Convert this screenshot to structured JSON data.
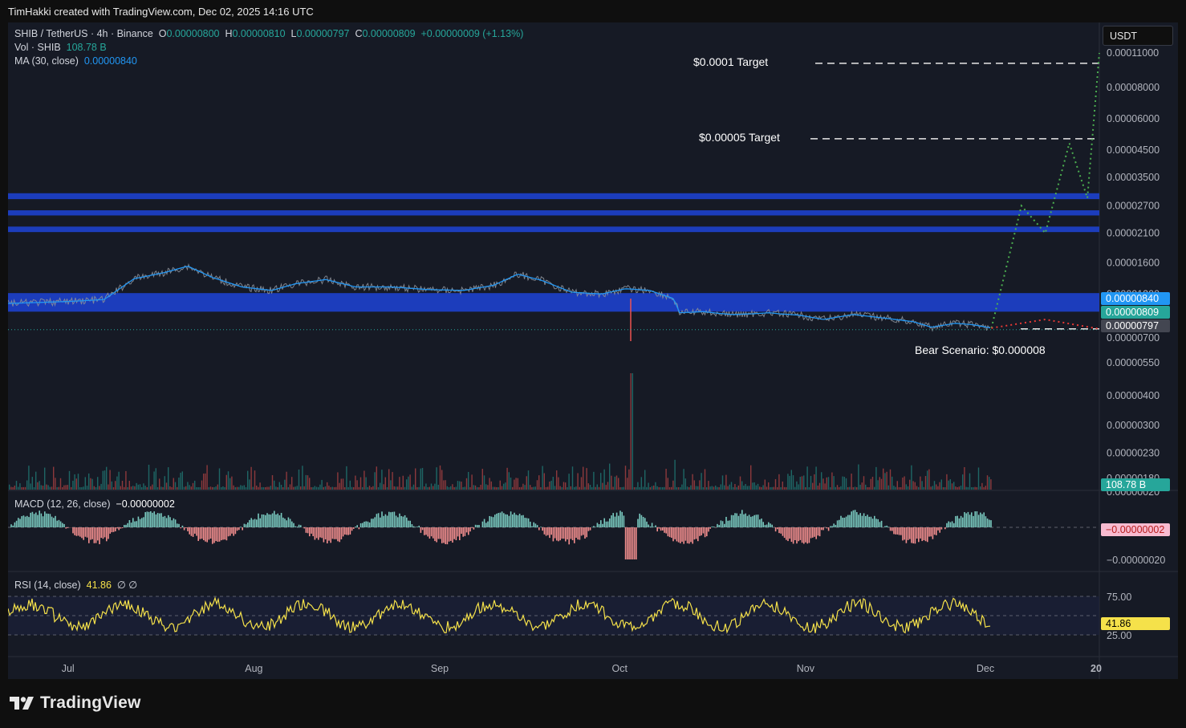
{
  "header": {
    "credit": "TimHakki created with TradingView.com, Dec 02, 2025 14:16 UTC"
  },
  "legend": {
    "symbol": "SHIB / TetherUS · 4h · Binance",
    "o_label": "O",
    "o_value": "0.00000800",
    "h_label": "H",
    "h_value": "0.00000810",
    "l_label": "L",
    "l_value": "0.00000797",
    "c_label": "C",
    "c_value": "0.00000809",
    "change": "+0.00000009 (+1.13%)",
    "vol_label": "Vol · SHIB",
    "vol_value": "108.78 B",
    "ma_label": "MA (30, close)",
    "ma_value": "0.00000840",
    "macd_label": "MACD (12, 26, close)",
    "macd_value": "−0.00000002",
    "rsi_label": "RSI (14, close)",
    "rsi_value": "41.86",
    "rsi_extra": "∅ ∅"
  },
  "currency": "USDT",
  "footer": {
    "brand": "TradingView"
  },
  "colors": {
    "background": "#161a25",
    "up": "#26a69a",
    "down": "#ef5350",
    "ma": "#2196f3",
    "zone": "#1c3fc4",
    "bull_path": "#4caf50",
    "bear_path": "#e53935",
    "rsi": "#f5e14a"
  },
  "chart_data": {
    "type": "line",
    "symbol": "SHIB / TetherUS",
    "timeframe": "4h",
    "x_ticks": [
      "Jul",
      "Aug",
      "Sep",
      "Oct",
      "Nov",
      "Dec",
      "20"
    ],
    "y_scale": "log",
    "price_axis_ticks": [
      "0.00011000",
      "0.00008000",
      "0.00006000",
      "0.00004500",
      "0.00003500",
      "0.00002700",
      "0.00002100",
      "0.00001600",
      "0.00001200",
      "0.00000700",
      "0.00000550",
      "0.00000400",
      "0.00000300",
      "0.00000230",
      "0.00000180",
      "0.00000020"
    ],
    "price_labels": [
      {
        "text": "0.00000840",
        "kind": "ma"
      },
      {
        "text": "0.00000809",
        "kind": "last"
      },
      {
        "text": "0.00000797",
        "kind": "low"
      }
    ],
    "volume_label": "108.78 B",
    "macd_axis_ticks": [
      "−0.00000020"
    ],
    "macd_label": "−0.00000002",
    "rsi_axis_ticks": [
      "75.00",
      "25.00"
    ],
    "rsi_label": "41.86",
    "annotations": [
      {
        "text": "$0.0001 Target",
        "price": 0.0001
      },
      {
        "text": "$0.00005 Target",
        "price": 5e-05
      },
      {
        "text": "Bear Scenario: $0.000008",
        "price": 8e-06
      }
    ],
    "resistance_zones": [
      {
        "low": 2.87e-05,
        "high": 3.03e-05
      },
      {
        "low": 2.47e-05,
        "high": 2.59e-05
      },
      {
        "low": 2.12e-05,
        "high": 2.23e-05
      },
      {
        "low": 1.02e-05,
        "high": 1.21e-05
      }
    ],
    "bull_scenario_path": [
      {
        "date": "2025-12-02",
        "price": 8.1e-06
      },
      {
        "date": "2025-12-07",
        "price": 2.7e-05
      },
      {
        "date": "2025-12-11",
        "price": 2.1e-05
      },
      {
        "date": "2025-12-15",
        "price": 4.8e-05
      },
      {
        "date": "2025-12-18",
        "price": 2.9e-05
      },
      {
        "date": "2025-12-20",
        "price": 0.00011
      }
    ],
    "bear_scenario_path": [
      {
        "date": "2025-12-02",
        "price": 8.1e-06
      },
      {
        "date": "2025-12-11",
        "price": 9.2e-06
      },
      {
        "date": "2025-12-20",
        "price": 8e-06
      }
    ],
    "price_series": [
      {
        "date": "2025-06-21",
        "price": 1.1e-05
      },
      {
        "date": "2025-07-01",
        "price": 1.12e-05
      },
      {
        "date": "2025-07-07",
        "price": 1.14e-05
      },
      {
        "date": "2025-07-12",
        "price": 1.38e-05
      },
      {
        "date": "2025-07-17",
        "price": 1.46e-05
      },
      {
        "date": "2025-07-21",
        "price": 1.55e-05
      },
      {
        "date": "2025-07-25",
        "price": 1.4e-05
      },
      {
        "date": "2025-07-30",
        "price": 1.28e-05
      },
      {
        "date": "2025-08-04",
        "price": 1.24e-05
      },
      {
        "date": "2025-08-08",
        "price": 1.32e-05
      },
      {
        "date": "2025-08-13",
        "price": 1.37e-05
      },
      {
        "date": "2025-08-18",
        "price": 1.28e-05
      },
      {
        "date": "2025-08-24",
        "price": 1.28e-05
      },
      {
        "date": "2025-08-30",
        "price": 1.25e-05
      },
      {
        "date": "2025-09-05",
        "price": 1.24e-05
      },
      {
        "date": "2025-09-10",
        "price": 1.3e-05
      },
      {
        "date": "2025-09-14",
        "price": 1.44e-05
      },
      {
        "date": "2025-09-18",
        "price": 1.36e-05
      },
      {
        "date": "2025-09-23",
        "price": 1.22e-05
      },
      {
        "date": "2025-09-28",
        "price": 1.2e-05
      },
      {
        "date": "2025-10-02",
        "price": 1.26e-05
      },
      {
        "date": "2025-10-06",
        "price": 1.24e-05
      },
      {
        "date": "2025-10-10",
        "price": 1.15e-05
      },
      {
        "date": "2025-10-11",
        "price": 1.01e-05
      },
      {
        "date": "2025-10-15",
        "price": 1.02e-05
      },
      {
        "date": "2025-10-20",
        "price": 9.9e-06
      },
      {
        "date": "2025-10-26",
        "price": 1.01e-05
      },
      {
        "date": "2025-10-31",
        "price": 9.8e-06
      },
      {
        "date": "2025-11-04",
        "price": 9.2e-06
      },
      {
        "date": "2025-11-09",
        "price": 9.9e-06
      },
      {
        "date": "2025-11-14",
        "price": 9.4e-06
      },
      {
        "date": "2025-11-19",
        "price": 8.9e-06
      },
      {
        "date": "2025-11-22",
        "price": 8.2e-06
      },
      {
        "date": "2025-11-26",
        "price": 8.7e-06
      },
      {
        "date": "2025-11-29",
        "price": 8.5e-06
      },
      {
        "date": "2025-12-02",
        "price": 8.1e-06
      }
    ]
  }
}
